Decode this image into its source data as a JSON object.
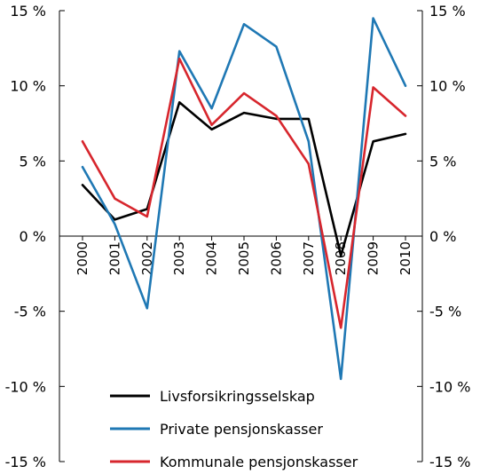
{
  "chart_data": {
    "type": "line",
    "title": "",
    "xlabel": "",
    "ylabel": "",
    "ylim": [
      -15,
      15
    ],
    "yticks": [
      15,
      10,
      5,
      0,
      -5,
      -10,
      -15
    ],
    "ytick_labels": [
      "15 %",
      "10 %",
      "5 %",
      "0 %",
      "-5 %",
      "-10 %",
      "-15 %"
    ],
    "x": [
      "2000",
      "2001",
      "2002",
      "2003",
      "2004",
      "2005",
      "2006",
      "2007",
      "2008",
      "2009",
      "2010"
    ],
    "grid": false,
    "legend_position": "bottom-center",
    "series": [
      {
        "name": "Livsforsikringsselskap",
        "color": "#000000",
        "values": [
          3.4,
          1.1,
          1.8,
          8.9,
          7.1,
          8.2,
          7.8,
          7.8,
          -1.3,
          6.3,
          6.8
        ]
      },
      {
        "name": "Private pensjonskasser",
        "color": "#1f78b4",
        "values": [
          4.6,
          0.8,
          -4.8,
          12.3,
          8.5,
          14.1,
          12.6,
          6.3,
          -9.5,
          14.5,
          10.0
        ]
      },
      {
        "name": "Kommunale pensjonskasser",
        "color": "#d7262d",
        "values": [
          6.3,
          2.5,
          1.3,
          11.8,
          7.4,
          9.5,
          8.0,
          4.8,
          -6.1,
          9.9,
          8.0
        ]
      }
    ]
  }
}
